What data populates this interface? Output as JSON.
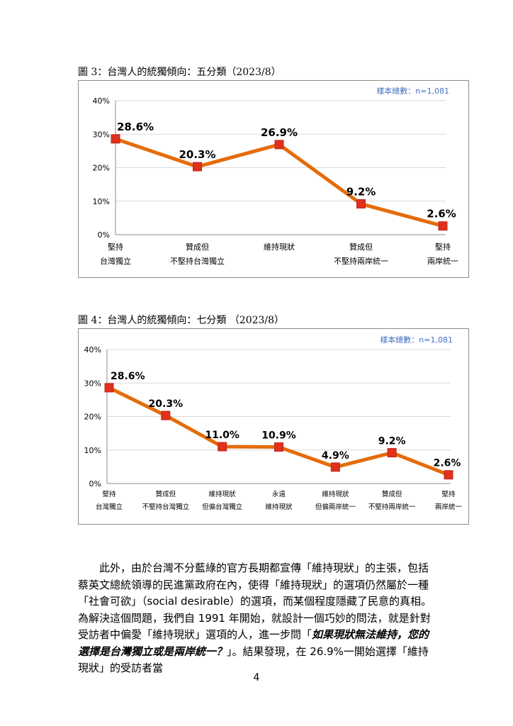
{
  "figures": [
    {
      "caption": "圖 3：台灣人的統獨傾向：五分類（2023/8）",
      "sample_note": "樣本總數：n=1,081"
    },
    {
      "caption": "圖 4：台灣人的統獨傾向：七分類 （2023/8）",
      "sample_note": "樣本總數：n=1,081"
    }
  ],
  "chart_data": [
    {
      "type": "line",
      "categories": [
        [
          "堅持",
          "台灣獨立"
        ],
        [
          "贊成但",
          "不堅持台灣獨立"
        ],
        [
          "維持現狀"
        ],
        [
          "贊成但",
          "不堅持兩岸統一"
        ],
        [
          "堅持",
          "兩岸統一"
        ]
      ],
      "values": [
        28.6,
        20.3,
        26.9,
        9.2,
        2.6
      ],
      "value_labels": [
        "28.6%",
        "20.3%",
        "26.9%",
        "9.2%",
        "2.6%"
      ],
      "ylim": [
        0,
        40
      ],
      "yticks": [
        "0%",
        "10%",
        "20%",
        "30%",
        "40%"
      ],
      "grid": true,
      "line_color": "#E46C0A",
      "marker_color": "#E0301E"
    },
    {
      "type": "line",
      "categories": [
        [
          "堅持",
          "台灣獨立"
        ],
        [
          "贊成但",
          "不堅持台灣獨立"
        ],
        [
          "維持現狀",
          "但偏台灣獨立"
        ],
        [
          "永遠",
          "維持現狀"
        ],
        [
          "維持現狀",
          "但偏兩岸統一"
        ],
        [
          "贊成但",
          "不堅持兩岸統一"
        ],
        [
          "堅持",
          "兩岸統一"
        ]
      ],
      "values": [
        28.6,
        20.3,
        11.0,
        10.9,
        4.9,
        9.2,
        2.6
      ],
      "value_labels": [
        "28.6%",
        "20.3%",
        "11.0%",
        "10.9%",
        "4.9%",
        "9.2%",
        "2.6%"
      ],
      "ylim": [
        0,
        40
      ],
      "yticks": [
        "0%",
        "10%",
        "20%",
        "30%",
        "40%"
      ],
      "grid": true,
      "line_color": "#E46C0A",
      "marker_color": "#E0301E"
    }
  ],
  "body": {
    "p1": "此外，由於台灣不分藍綠的官方長期都宣傳「維持現狀」的主張，包括蔡英文總統領導的民進黨政府在內，使得「維持現狀」的選項仍然屬於一種「社會可欲」（social desirable）的選項，而某個程度隱藏了民意的真相。為解決這個問題，我們自 1991 年開始，就設計一個巧妙的問法，就是針對受訪者中偏愛「維持現狀」選項的人，進一步問「",
    "p1_em": "如果現狀無法維持，您的選擇是台灣獨立或是兩岸統一？",
    "p1_tail": "」。結果發現，在 26.9%一開始選擇「維持現狀」的受訪者當"
  },
  "page_number": "4"
}
